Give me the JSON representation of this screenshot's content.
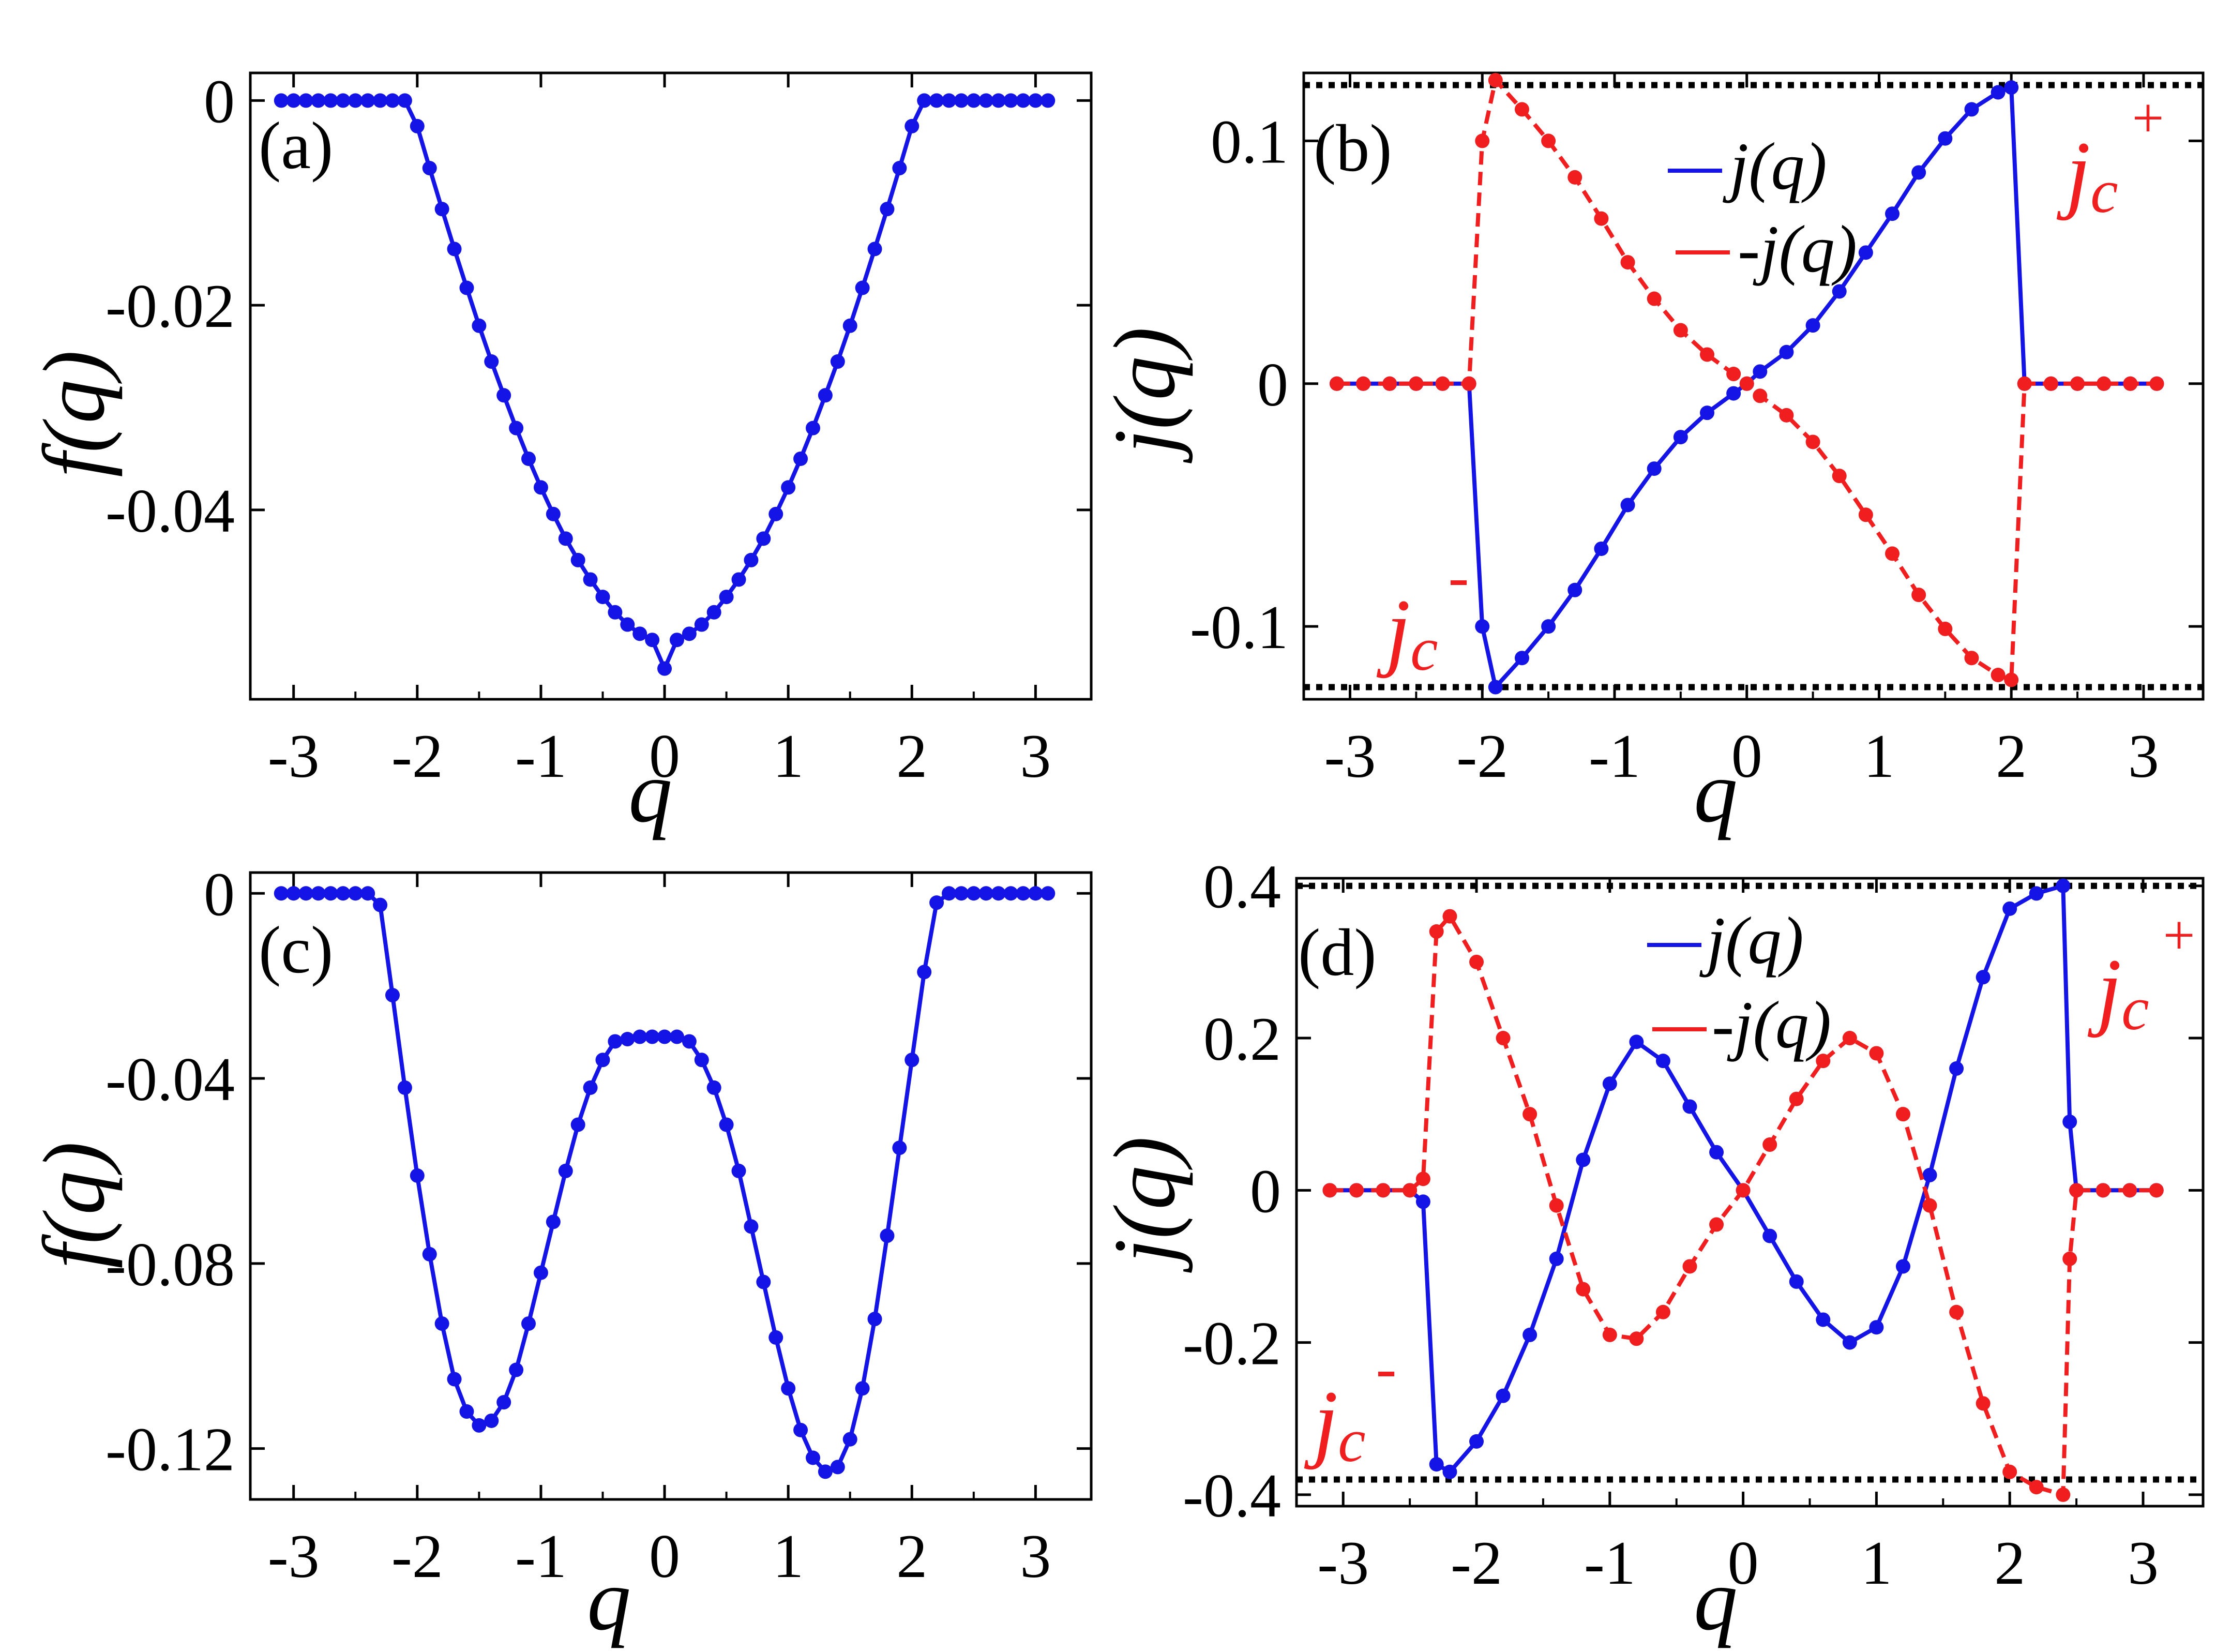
{
  "colors": {
    "blue": "#1414e6",
    "red": "#f01e1e",
    "black": "#000000"
  },
  "chart_data": [
    {
      "id": "a",
      "type": "line",
      "panel_label": "(a)",
      "xlabel": "q",
      "ylabel": "f(q)",
      "xlim": [
        -3.35,
        3.45
      ],
      "ylim": [
        -0.0585,
        0.0027
      ],
      "xticks": [
        "-3",
        "-2",
        "-1",
        "0",
        "1",
        "2",
        "3"
      ],
      "yticks": [
        "0",
        "-0.02",
        "-0.04"
      ],
      "ytick_values": [
        0,
        -0.02,
        -0.04
      ],
      "series": [
        {
          "name": "",
          "color": "#1414e6",
          "style": "solid",
          "x": [
            -3.1,
            -3.0,
            -2.9,
            -2.8,
            -2.7,
            -2.6,
            -2.5,
            -2.4,
            -2.3,
            -2.2,
            -2.1,
            -2.0,
            -1.9,
            -1.8,
            -1.7,
            -1.6,
            -1.5,
            -1.4,
            -1.3,
            -1.2,
            -1.1,
            -1.0,
            -0.9,
            -0.8,
            -0.7,
            -0.6,
            -0.5,
            -0.4,
            -0.3,
            -0.2,
            -0.1,
            0.0,
            0.1,
            0.2,
            0.3,
            0.4,
            0.5,
            0.6,
            0.7,
            0.8,
            0.9,
            1.0,
            1.1,
            1.2,
            1.3,
            1.4,
            1.5,
            1.6,
            1.7,
            1.8,
            1.9,
            2.0,
            2.1,
            2.2,
            2.3,
            2.4,
            2.5,
            2.6,
            2.7,
            2.8,
            2.9,
            3.0,
            3.1
          ],
          "y": [
            0,
            0,
            0,
            0,
            0,
            0,
            0,
            0,
            0,
            0,
            0,
            -0.0025,
            -0.0066,
            -0.0106,
            -0.0145,
            -0.0183,
            -0.022,
            -0.0255,
            -0.0288,
            -0.032,
            -0.035,
            -0.0378,
            -0.0404,
            -0.0428,
            -0.0449,
            -0.0468,
            -0.0485,
            -0.05,
            -0.0512,
            -0.0521,
            -0.0527,
            -0.0555,
            -0.0527,
            -0.0521,
            -0.0512,
            -0.05,
            -0.0485,
            -0.0468,
            -0.0449,
            -0.0428,
            -0.0404,
            -0.0378,
            -0.035,
            -0.032,
            -0.0288,
            -0.0255,
            -0.022,
            -0.0183,
            -0.0145,
            -0.0106,
            -0.0066,
            -0.0025,
            0,
            0,
            0,
            0,
            0,
            0,
            0,
            0,
            0,
            0,
            0
          ]
        }
      ],
      "dotted_lines": []
    },
    {
      "id": "b",
      "type": "line",
      "panel_label": "(b)",
      "xlabel": "q",
      "ylabel": "j(q)",
      "xlim": [
        -3.35,
        3.45
      ],
      "ylim": [
        -0.13,
        0.128
      ],
      "xticks": [
        "-3",
        "-2",
        "-1",
        "0",
        "1",
        "2",
        "3"
      ],
      "yticks": [
        "0.1",
        "0",
        "-0.1"
      ],
      "ytick_values": [
        0.1,
        0,
        -0.1
      ],
      "series": [
        {
          "name": "j(q)",
          "color": "#1414e6",
          "style": "solid",
          "x": [
            -3.1,
            -2.9,
            -2.7,
            -2.5,
            -2.3,
            -2.1,
            -2.0,
            -1.9,
            -1.7,
            -1.5,
            -1.3,
            -1.1,
            -0.9,
            -0.7,
            -0.5,
            -0.3,
            -0.1,
            0.0,
            0.1,
            0.3,
            0.5,
            0.7,
            0.9,
            1.1,
            1.3,
            1.5,
            1.7,
            1.9,
            2.0,
            2.1,
            2.3,
            2.5,
            2.7,
            2.9,
            3.1
          ],
          "y": [
            0,
            0,
            0,
            0,
            0,
            0,
            -0.1,
            -0.125,
            -0.113,
            -0.1,
            -0.085,
            -0.068,
            -0.05,
            -0.035,
            -0.022,
            -0.012,
            -0.004,
            0,
            0.005,
            0.013,
            0.024,
            0.038,
            0.054,
            0.07,
            0.087,
            0.101,
            0.113,
            0.12,
            0.122,
            0,
            0,
            0,
            0,
            0,
            0
          ]
        },
        {
          "name": "-j(q)",
          "color": "#f01e1e",
          "style": "dashed",
          "x": [
            -3.1,
            -2.9,
            -2.7,
            -2.5,
            -2.3,
            -2.1,
            -2.0,
            -1.9,
            -1.7,
            -1.5,
            -1.3,
            -1.1,
            -0.9,
            -0.7,
            -0.5,
            -0.3,
            -0.1,
            0.0,
            0.1,
            0.3,
            0.5,
            0.7,
            0.9,
            1.1,
            1.3,
            1.5,
            1.7,
            1.9,
            2.0,
            2.1,
            2.3,
            2.5,
            2.7,
            2.9,
            3.1
          ],
          "y": [
            0,
            0,
            0,
            0,
            0,
            0,
            0.1,
            0.125,
            0.113,
            0.1,
            0.085,
            0.068,
            0.05,
            0.035,
            0.022,
            0.012,
            0.004,
            0,
            -0.005,
            -0.013,
            -0.024,
            -0.038,
            -0.054,
            -0.07,
            -0.087,
            -0.101,
            -0.113,
            -0.12,
            -0.122,
            0,
            0,
            0,
            0,
            0,
            0
          ]
        }
      ],
      "dotted_lines": [
        0.123,
        -0.125
      ],
      "legend": {
        "position": "top-center"
      }
    },
    {
      "id": "c",
      "type": "line",
      "panel_label": "(c)",
      "xlabel": "q",
      "ylabel": "f(q)",
      "xlim": [
        -3.35,
        3.45
      ],
      "ylim": [
        -0.131,
        0.0045
      ],
      "xticks": [
        "-3",
        "-2",
        "-1",
        "0",
        "1",
        "2",
        "3"
      ],
      "yticks": [
        "0",
        "-0.04",
        "-0.08",
        "-0.12"
      ],
      "ytick_values": [
        0,
        -0.04,
        -0.08,
        -0.12
      ],
      "series": [
        {
          "name": "",
          "color": "#1414e6",
          "style": "solid",
          "x": [
            -3.1,
            -3.0,
            -2.9,
            -2.8,
            -2.7,
            -2.6,
            -2.5,
            -2.4,
            -2.3,
            -2.2,
            -2.1,
            -2.0,
            -1.9,
            -1.8,
            -1.7,
            -1.6,
            -1.5,
            -1.4,
            -1.3,
            -1.2,
            -1.1,
            -1.0,
            -0.9,
            -0.8,
            -0.7,
            -0.6,
            -0.5,
            -0.4,
            -0.3,
            -0.2,
            -0.1,
            0.0,
            0.1,
            0.2,
            0.3,
            0.4,
            0.5,
            0.6,
            0.7,
            0.8,
            0.9,
            1.0,
            1.1,
            1.2,
            1.3,
            1.4,
            1.5,
            1.6,
            1.7,
            1.8,
            1.9,
            2.0,
            2.1,
            2.2,
            2.3,
            2.4,
            2.5,
            2.6,
            2.7,
            2.8,
            2.9,
            3.0,
            3.1
          ],
          "y": [
            0,
            0,
            0,
            0,
            0,
            0,
            0,
            0,
            -0.0025,
            -0.022,
            -0.042,
            -0.061,
            -0.078,
            -0.093,
            -0.105,
            -0.112,
            -0.115,
            -0.114,
            -0.11,
            -0.103,
            -0.093,
            -0.082,
            -0.071,
            -0.06,
            -0.05,
            -0.042,
            -0.036,
            -0.032,
            -0.0315,
            -0.031,
            -0.031,
            -0.031,
            -0.031,
            -0.032,
            -0.036,
            -0.042,
            -0.05,
            -0.06,
            -0.072,
            -0.084,
            -0.096,
            -0.107,
            -0.116,
            -0.122,
            -0.125,
            -0.124,
            -0.118,
            -0.107,
            -0.092,
            -0.074,
            -0.055,
            -0.036,
            -0.017,
            -0.002,
            0,
            0,
            0,
            0,
            0,
            0,
            0,
            0,
            0
          ]
        }
      ],
      "dotted_lines": []
    },
    {
      "id": "d",
      "type": "line",
      "panel_label": "(d)",
      "xlabel": "q",
      "ylabel": "j(q)",
      "xlim": [
        -3.35,
        3.45
      ],
      "ylim": [
        -0.415,
        0.41
      ],
      "xticks": [
        "-3",
        "-2",
        "-1",
        "0",
        "1",
        "2",
        "3"
      ],
      "yticks": [
        "0.4",
        "0.2",
        "0",
        "-0.2",
        "-0.4"
      ],
      "ytick_values": [
        0.4,
        0.2,
        0,
        -0.2,
        -0.4
      ],
      "series": [
        {
          "name": "j(q)",
          "color": "#1414e6",
          "style": "solid",
          "x": [
            -3.1,
            -2.9,
            -2.7,
            -2.5,
            -2.4,
            -2.3,
            -2.2,
            -2.0,
            -1.8,
            -1.6,
            -1.4,
            -1.2,
            -1.0,
            -0.8,
            -0.6,
            -0.4,
            -0.2,
            0.0,
            0.2,
            0.4,
            0.6,
            0.8,
            1.0,
            1.2,
            1.4,
            1.6,
            1.8,
            2.0,
            2.2,
            2.4,
            2.45,
            2.5,
            2.7,
            2.9,
            3.1
          ],
          "y": [
            0,
            0,
            0,
            0,
            -0.015,
            -0.36,
            -0.37,
            -0.33,
            -0.27,
            -0.19,
            -0.09,
            0.04,
            0.14,
            0.195,
            0.17,
            0.11,
            0.05,
            0,
            -0.06,
            -0.12,
            -0.17,
            -0.2,
            -0.18,
            -0.1,
            0.02,
            0.16,
            0.28,
            0.37,
            0.39,
            0.4,
            0.09,
            0,
            0,
            0,
            0
          ]
        },
        {
          "name": "-j(q)",
          "color": "#f01e1e",
          "style": "dashed",
          "x": [
            -3.1,
            -2.9,
            -2.7,
            -2.5,
            -2.4,
            -2.3,
            -2.2,
            -2.0,
            -1.8,
            -1.6,
            -1.4,
            -1.2,
            -1.0,
            -0.8,
            -0.6,
            -0.4,
            -0.2,
            0.0,
            0.2,
            0.4,
            0.6,
            0.8,
            1.0,
            1.2,
            1.4,
            1.6,
            1.8,
            2.0,
            2.2,
            2.4,
            2.45,
            2.5,
            2.7,
            2.9,
            3.1
          ],
          "y": [
            0,
            0,
            0,
            0,
            0.015,
            0.34,
            0.36,
            0.3,
            0.2,
            0.1,
            -0.02,
            -0.13,
            -0.19,
            -0.195,
            -0.16,
            -0.1,
            -0.045,
            0,
            0.06,
            0.12,
            0.17,
            0.2,
            0.18,
            0.1,
            -0.02,
            -0.16,
            -0.28,
            -0.37,
            -0.39,
            -0.4,
            -0.09,
            0,
            0,
            0,
            0
          ]
        }
      ],
      "dotted_lines": [
        0.4,
        -0.38
      ],
      "legend": {
        "position": "top-center"
      }
    }
  ],
  "jc_labels": {
    "jc_plus_main": "j",
    "jc_plus_sub": "c",
    "jc_plus_sup": "+",
    "jc_minus_main": "j",
    "jc_minus_sub": "c",
    "jc_minus_sup": "-"
  }
}
